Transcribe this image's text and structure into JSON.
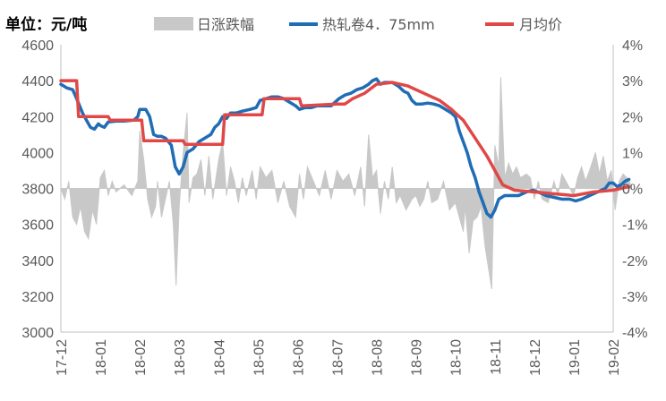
{
  "chart_data": {
    "type": "line",
    "unit_label": "单位：元/吨",
    "x_ticks": [
      "17-12",
      "18-01",
      "18-02",
      "18-03",
      "18-04",
      "18-05",
      "18-06",
      "18-07",
      "18-08",
      "18-09",
      "18-10",
      "18-11",
      "18-12",
      "19-01",
      "19-02"
    ],
    "y_left": {
      "ticks": [
        "3000",
        "3200",
        "3400",
        "3600",
        "3800",
        "4000",
        "4200",
        "4400",
        "4600"
      ],
      "range": [
        3000,
        4600
      ]
    },
    "y_right": {
      "ticks": [
        "-4%",
        "-3%",
        "-2%",
        "-1%",
        "0%",
        "1%",
        "2%",
        "3%",
        "4%"
      ],
      "range": [
        -4,
        4
      ]
    },
    "legend": [
      {
        "name": "日涨跌幅",
        "color": "#c8c8c8",
        "kind": "area"
      },
      {
        "name": "热轧卷4．75mm",
        "color": "#1f6db5",
        "kind": "line"
      },
      {
        "name": "月均价",
        "color": "#e04848",
        "kind": "line"
      }
    ],
    "series": [
      {
        "name": "热轧卷4．75mm",
        "axis": "left",
        "points": [
          [
            0.0,
            4380
          ],
          [
            0.15,
            4360
          ],
          [
            0.3,
            4350
          ],
          [
            0.4,
            4300
          ],
          [
            0.55,
            4220
          ],
          [
            0.65,
            4180
          ],
          [
            0.75,
            4140
          ],
          [
            0.85,
            4130
          ],
          [
            0.95,
            4160
          ],
          [
            1.0,
            4150
          ],
          [
            1.1,
            4140
          ],
          [
            1.2,
            4170
          ],
          [
            1.4,
            4175
          ],
          [
            1.6,
            4175
          ],
          [
            1.85,
            4180
          ],
          [
            1.95,
            4200
          ],
          [
            2.0,
            4240
          ],
          [
            2.15,
            4240
          ],
          [
            2.25,
            4200
          ],
          [
            2.35,
            4100
          ],
          [
            2.45,
            4090
          ],
          [
            2.55,
            4090
          ],
          [
            2.65,
            4080
          ],
          [
            2.8,
            4040
          ],
          [
            2.9,
            3920
          ],
          [
            3.0,
            3880
          ],
          [
            3.1,
            3920
          ],
          [
            3.2,
            4000
          ],
          [
            3.35,
            4020
          ],
          [
            3.5,
            4060
          ],
          [
            3.65,
            4080
          ],
          [
            3.8,
            4100
          ],
          [
            3.9,
            4140
          ],
          [
            4.0,
            4160
          ],
          [
            4.1,
            4200
          ],
          [
            4.2,
            4190
          ],
          [
            4.3,
            4220
          ],
          [
            4.45,
            4220
          ],
          [
            4.6,
            4230
          ],
          [
            4.8,
            4240
          ],
          [
            4.95,
            4250
          ],
          [
            5.05,
            4290
          ],
          [
            5.2,
            4300
          ],
          [
            5.35,
            4310
          ],
          [
            5.5,
            4310
          ],
          [
            5.65,
            4300
          ],
          [
            5.8,
            4280
          ],
          [
            5.95,
            4260
          ],
          [
            6.05,
            4240
          ],
          [
            6.2,
            4250
          ],
          [
            6.35,
            4250
          ],
          [
            6.5,
            4260
          ],
          [
            6.7,
            4260
          ],
          [
            6.85,
            4260
          ],
          [
            6.95,
            4280
          ],
          [
            7.05,
            4300
          ],
          [
            7.2,
            4320
          ],
          [
            7.35,
            4330
          ],
          [
            7.5,
            4350
          ],
          [
            7.65,
            4360
          ],
          [
            7.8,
            4380
          ],
          [
            7.9,
            4400
          ],
          [
            8.0,
            4410
          ],
          [
            8.1,
            4380
          ],
          [
            8.2,
            4390
          ],
          [
            8.4,
            4390
          ],
          [
            8.55,
            4370
          ],
          [
            8.7,
            4340
          ],
          [
            8.8,
            4330
          ],
          [
            8.9,
            4290
          ],
          [
            9.0,
            4270
          ],
          [
            9.15,
            4270
          ],
          [
            9.3,
            4275
          ],
          [
            9.45,
            4270
          ],
          [
            9.6,
            4260
          ],
          [
            9.75,
            4240
          ],
          [
            9.9,
            4220
          ],
          [
            10.0,
            4200
          ],
          [
            10.1,
            4120
          ],
          [
            10.2,
            4060
          ],
          [
            10.3,
            4000
          ],
          [
            10.4,
            3920
          ],
          [
            10.5,
            3860
          ],
          [
            10.6,
            3780
          ],
          [
            10.7,
            3720
          ],
          [
            10.8,
            3660
          ],
          [
            10.9,
            3640
          ],
          [
            11.0,
            3680
          ],
          [
            11.1,
            3740
          ],
          [
            11.25,
            3760
          ],
          [
            11.4,
            3760
          ],
          [
            11.6,
            3760
          ],
          [
            11.8,
            3780
          ],
          [
            11.95,
            3790
          ],
          [
            12.1,
            3780
          ],
          [
            12.3,
            3760
          ],
          [
            12.5,
            3750
          ],
          [
            12.7,
            3740
          ],
          [
            12.9,
            3740
          ],
          [
            13.05,
            3730
          ],
          [
            13.2,
            3740
          ],
          [
            13.4,
            3760
          ],
          [
            13.6,
            3780
          ],
          [
            13.8,
            3800
          ],
          [
            13.9,
            3830
          ],
          [
            14.0,
            3830
          ],
          [
            14.1,
            3810
          ],
          [
            14.2,
            3820
          ],
          [
            14.3,
            3840
          ],
          [
            14.4,
            3850
          ]
        ]
      },
      {
        "name": "月均价",
        "axis": "left",
        "points": [
          [
            0.0,
            4400
          ],
          [
            0.4,
            4400
          ],
          [
            0.45,
            4200
          ],
          [
            1.2,
            4200
          ],
          [
            1.25,
            4180
          ],
          [
            2.05,
            4180
          ],
          [
            2.1,
            4065
          ],
          [
            3.1,
            4065
          ],
          [
            3.15,
            4045
          ],
          [
            4.1,
            4045
          ],
          [
            4.15,
            4210
          ],
          [
            5.1,
            4210
          ],
          [
            5.15,
            4300
          ],
          [
            6.05,
            4300
          ],
          [
            6.1,
            4260
          ],
          [
            7.0,
            4270
          ],
          [
            7.2,
            4270
          ],
          [
            7.4,
            4300
          ],
          [
            7.7,
            4330
          ],
          [
            8.0,
            4380
          ],
          [
            8.4,
            4390
          ],
          [
            8.8,
            4370
          ],
          [
            9.2,
            4330
          ],
          [
            9.6,
            4290
          ],
          [
            9.9,
            4240
          ],
          [
            10.2,
            4180
          ],
          [
            10.5,
            4080
          ],
          [
            10.8,
            3980
          ],
          [
            11.0,
            3900
          ],
          [
            11.2,
            3820
          ],
          [
            11.5,
            3790
          ],
          [
            12.0,
            3780
          ],
          [
            12.5,
            3770
          ],
          [
            13.0,
            3760
          ],
          [
            13.5,
            3780
          ],
          [
            14.0,
            3790
          ],
          [
            14.4,
            3810
          ]
        ]
      },
      {
        "name": "日涨跌幅",
        "axis": "right",
        "points": [
          [
            0.0,
            0.0
          ],
          [
            0.1,
            -0.3
          ],
          [
            0.2,
            0.2
          ],
          [
            0.3,
            -0.8
          ],
          [
            0.4,
            -1.0
          ],
          [
            0.5,
            -0.5
          ],
          [
            0.6,
            -1.2
          ],
          [
            0.7,
            -1.4
          ],
          [
            0.8,
            -0.6
          ],
          [
            0.9,
            -1.0
          ],
          [
            1.0,
            0.3
          ],
          [
            1.1,
            0.5
          ],
          [
            1.2,
            -0.2
          ],
          [
            1.3,
            0.2
          ],
          [
            1.4,
            -0.1
          ],
          [
            1.6,
            0.1
          ],
          [
            1.8,
            -0.2
          ],
          [
            1.95,
            0.2
          ],
          [
            2.0,
            1.6
          ],
          [
            2.1,
            0.8
          ],
          [
            2.2,
            -0.3
          ],
          [
            2.3,
            -0.8
          ],
          [
            2.4,
            -0.5
          ],
          [
            2.45,
            0.2
          ],
          [
            2.55,
            -0.8
          ],
          [
            2.65,
            -0.3
          ],
          [
            2.75,
            0.2
          ],
          [
            2.85,
            -1.0
          ],
          [
            2.92,
            -2.7
          ],
          [
            3.0,
            -0.5
          ],
          [
            3.1,
            1.0
          ],
          [
            3.2,
            2.1
          ],
          [
            3.25,
            -0.4
          ],
          [
            3.35,
            0.3
          ],
          [
            3.45,
            0.4
          ],
          [
            3.55,
            0.8
          ],
          [
            3.65,
            -0.2
          ],
          [
            3.75,
            0.9
          ],
          [
            3.85,
            -0.3
          ],
          [
            4.0,
            0.8
          ],
          [
            4.1,
            1.3
          ],
          [
            4.2,
            -0.2
          ],
          [
            4.3,
            0.6
          ],
          [
            4.4,
            0.2
          ],
          [
            4.5,
            -0.4
          ],
          [
            4.6,
            0.3
          ],
          [
            4.7,
            -0.2
          ],
          [
            4.85,
            0.5
          ],
          [
            4.95,
            -0.3
          ],
          [
            5.05,
            0.6
          ],
          [
            5.2,
            0.3
          ],
          [
            5.35,
            0.5
          ],
          [
            5.5,
            -0.4
          ],
          [
            5.65,
            0.2
          ],
          [
            5.8,
            -0.5
          ],
          [
            5.95,
            -0.8
          ],
          [
            6.05,
            0.4
          ],
          [
            6.15,
            -0.3
          ],
          [
            6.25,
            0.6
          ],
          [
            6.4,
            0.2
          ],
          [
            6.55,
            -0.2
          ],
          [
            6.7,
            0.5
          ],
          [
            6.85,
            -0.3
          ],
          [
            7.0,
            0.5
          ],
          [
            7.15,
            0.2
          ],
          [
            7.3,
            0.4
          ],
          [
            7.45,
            -0.2
          ],
          [
            7.6,
            0.6
          ],
          [
            7.7,
            -0.5
          ],
          [
            7.8,
            1.5
          ],
          [
            7.9,
            0.3
          ],
          [
            8.0,
            0.5
          ],
          [
            8.1,
            -0.7
          ],
          [
            8.2,
            0.2
          ],
          [
            8.3,
            -0.3
          ],
          [
            8.4,
            0.6
          ],
          [
            8.5,
            -0.4
          ],
          [
            8.6,
            -0.2
          ],
          [
            8.75,
            -0.6
          ],
          [
            8.9,
            -0.3
          ],
          [
            9.0,
            -0.2
          ],
          [
            9.1,
            -0.5
          ],
          [
            9.2,
            -0.3
          ],
          [
            9.3,
            0.2
          ],
          [
            9.4,
            -0.4
          ],
          [
            9.55,
            -0.3
          ],
          [
            9.7,
            0.2
          ],
          [
            9.85,
            -0.6
          ],
          [
            10.0,
            -0.4
          ],
          [
            10.1,
            -0.8
          ],
          [
            10.2,
            -1.2
          ],
          [
            10.25,
            -0.5
          ],
          [
            10.35,
            -1.8
          ],
          [
            10.45,
            -0.9
          ],
          [
            10.55,
            -0.8
          ],
          [
            10.65,
            -0.5
          ],
          [
            10.75,
            -1.6
          ],
          [
            10.85,
            -2.3
          ],
          [
            10.92,
            -2.8
          ],
          [
            11.0,
            1.2
          ],
          [
            11.1,
            0.6
          ],
          [
            11.15,
            3.1
          ],
          [
            11.25,
            0.3
          ],
          [
            11.35,
            0.7
          ],
          [
            11.45,
            0.4
          ],
          [
            11.55,
            0.6
          ],
          [
            11.65,
            0.3
          ],
          [
            11.8,
            0.4
          ],
          [
            11.9,
            0.3
          ],
          [
            12.0,
            -0.3
          ],
          [
            12.1,
            0.2
          ],
          [
            12.2,
            -0.3
          ],
          [
            12.35,
            -0.4
          ],
          [
            12.5,
            0.2
          ],
          [
            12.6,
            -0.2
          ],
          [
            12.7,
            0.4
          ],
          [
            13.0,
            -0.2
          ],
          [
            13.1,
            0.3
          ],
          [
            13.2,
            0.6
          ],
          [
            13.3,
            0.2
          ],
          [
            13.4,
            0.5
          ],
          [
            13.55,
            1.0
          ],
          [
            13.65,
            0.4
          ],
          [
            13.75,
            0.9
          ],
          [
            13.85,
            0.2
          ],
          [
            13.95,
            0.5
          ],
          [
            14.05,
            -0.6
          ],
          [
            14.15,
            0.2
          ],
          [
            14.25,
            0.4
          ],
          [
            14.35,
            0.3
          ],
          [
            14.45,
            0.1
          ]
        ]
      }
    ]
  }
}
